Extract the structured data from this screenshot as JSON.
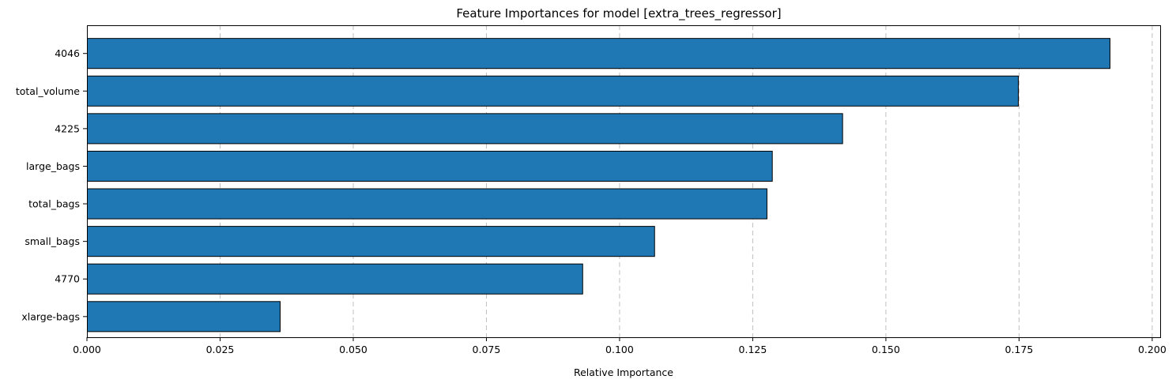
{
  "chart_data": {
    "type": "bar",
    "orientation": "horizontal",
    "title": "Feature Importances for model [extra_trees_regressor]",
    "xlabel": "Relative Importance",
    "ylabel": "",
    "categories": [
      "4046",
      "total_volume",
      "4225",
      "large_bags",
      "total_bags",
      "small_bags",
      "4770",
      "xlarge-bags"
    ],
    "values": [
      0.192,
      0.1748,
      0.1418,
      0.1286,
      0.1276,
      0.1065,
      0.093,
      0.0362
    ],
    "xlim": [
      0.0,
      0.2015
    ],
    "xticks": [
      "0.000",
      "0.025",
      "0.050",
      "0.075",
      "0.100",
      "0.125",
      "0.150",
      "0.175",
      "0.200"
    ],
    "grid": "x-dashed",
    "legend": "none",
    "bar_color": "#1f77b4",
    "edge_color": "#000000"
  }
}
